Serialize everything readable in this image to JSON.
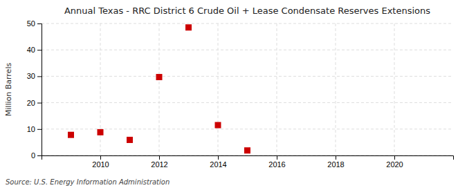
{
  "chart_data": {
    "type": "scatter",
    "title": "Annual Texas - RRC District 6 Crude Oil + Lease Condensate Reserves Extensions",
    "ylabel": "Million Barrels",
    "source": "Source: U.S. Energy Information Administration",
    "x": [
      2009,
      2010,
      2011,
      2012,
      2013,
      2014,
      2015
    ],
    "values": [
      7.8,
      8.8,
      5.9,
      29.7,
      48.5,
      11.5,
      1.9
    ],
    "color": "#cc0000",
    "marker": "square",
    "xlim": [
      2008.0,
      2022.0
    ],
    "ylim": [
      0,
      50
    ],
    "xticks": [
      2010,
      2012,
      2014,
      2016,
      2018,
      2020
    ],
    "yticks": [
      0,
      10,
      20,
      30,
      40,
      50
    ],
    "grid": true
  }
}
